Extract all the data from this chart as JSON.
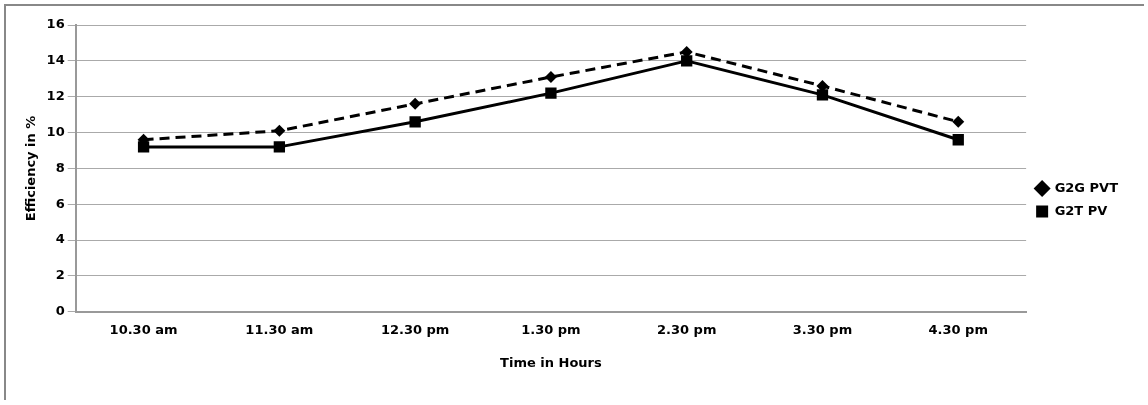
{
  "chart_data": {
    "type": "line",
    "xlabel": "Time in Hours",
    "ylabel": "Efficiency in %",
    "categories": [
      "10.30 am",
      "11.30 am",
      "12.30 pm",
      "1.30 pm",
      "2.30 pm",
      "3.30 pm",
      "4.30 pm"
    ],
    "series": [
      {
        "name": "G2G PVT",
        "color": "#000000",
        "marker": "diamond",
        "line_style": "dashed",
        "values": [
          9.6,
          10.1,
          11.6,
          13.1,
          14.5,
          12.6,
          10.6
        ]
      },
      {
        "name": "G2T PV",
        "color": "#000000",
        "marker": "square",
        "line_style": "solid",
        "values": [
          9.2,
          9.2,
          10.6,
          12.2,
          14.0,
          12.1,
          9.6
        ]
      }
    ],
    "ylim": [
      0,
      16
    ],
    "yticks": [
      0,
      2,
      4,
      6,
      8,
      10,
      12,
      14,
      16
    ],
    "grid": "y",
    "legend": "right"
  }
}
